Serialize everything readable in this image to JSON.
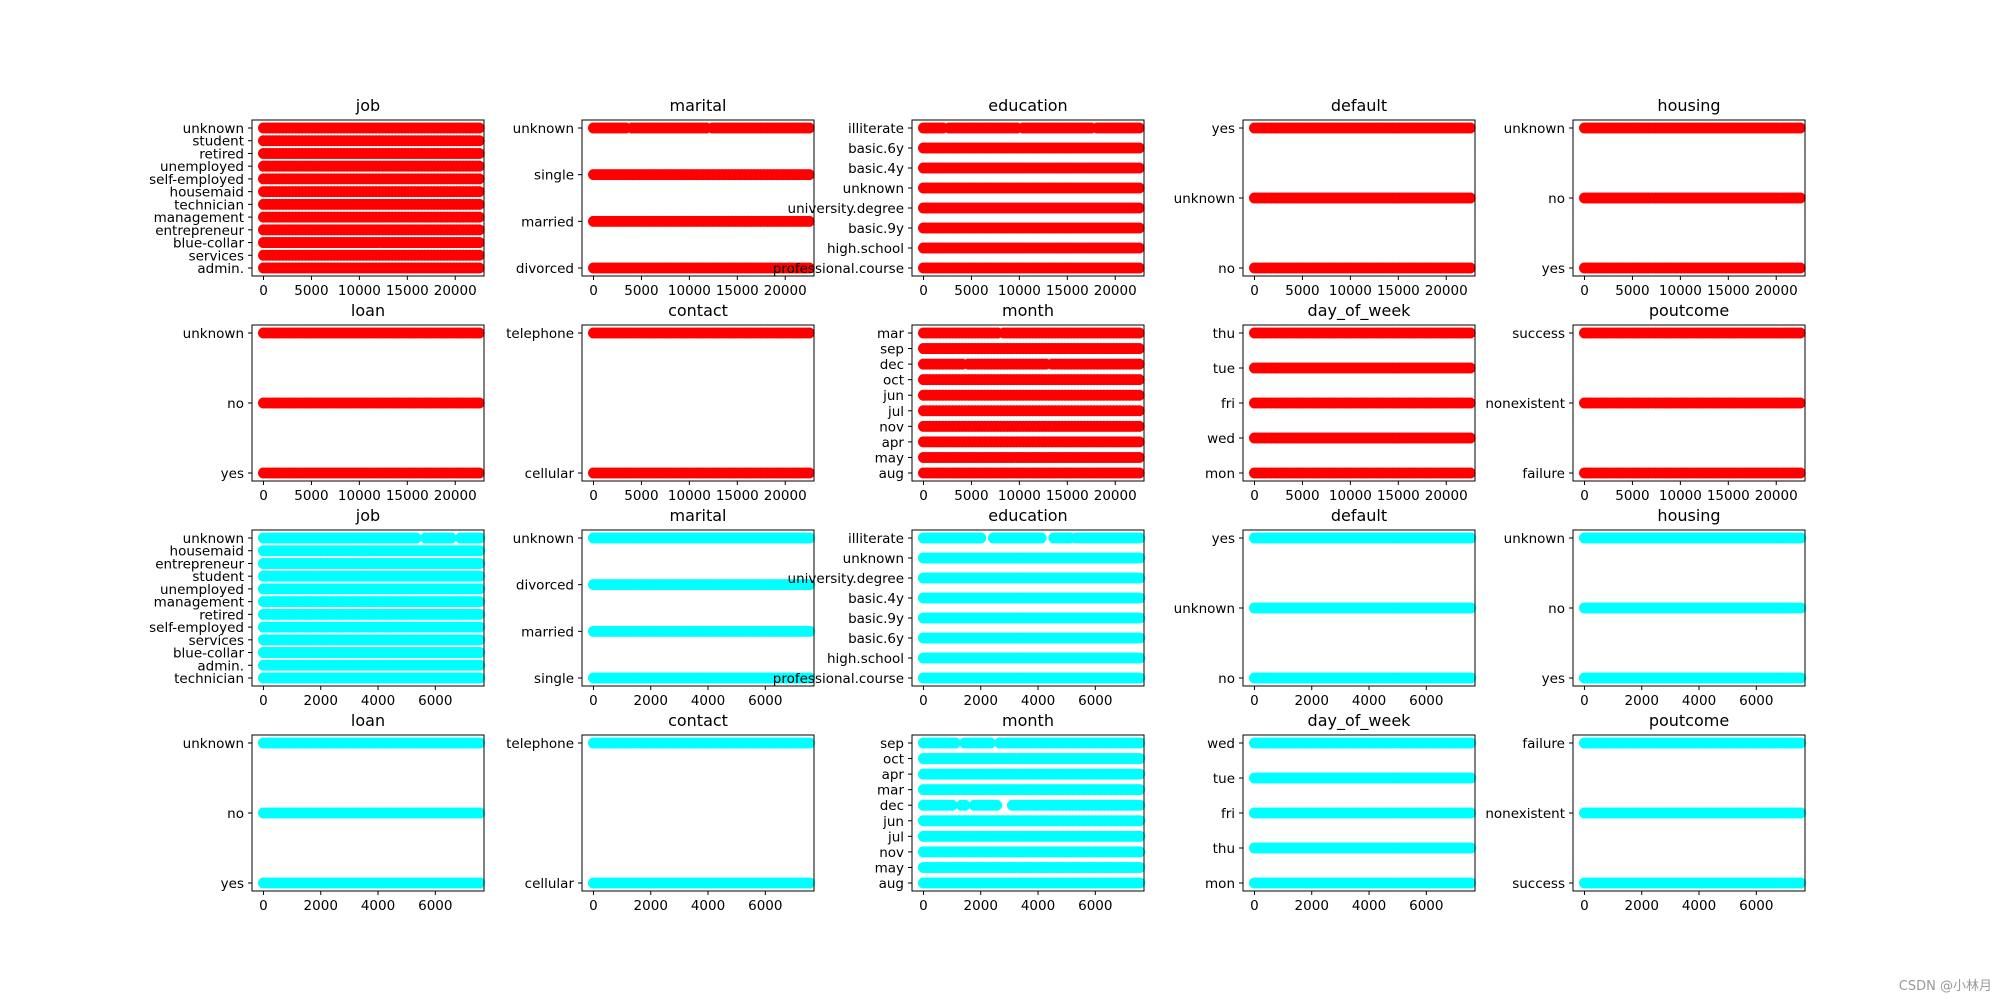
{
  "figure": {
    "watermark": "CSDN @小林月",
    "colors": {
      "group1": "#ff0000",
      "group2": "#00ffff",
      "axis": "#000000"
    }
  },
  "chart_data": [
    {
      "type": "scatter",
      "title": "job",
      "group": 1,
      "categories": [
        "admin.",
        "services",
        "blue-collar",
        "entrepreneur",
        "management",
        "technician",
        "housemaid",
        "self-employed",
        "unemployed",
        "retired",
        "student",
        "unknown"
      ],
      "xlim": [
        -1200,
        23000
      ],
      "xticks": [
        0,
        5000,
        10000,
        15000,
        20000
      ],
      "xrange": [
        0,
        22500
      ],
      "gaps": {}
    },
    {
      "type": "scatter",
      "title": "marital",
      "group": 1,
      "categories": [
        "divorced",
        "married",
        "single",
        "unknown"
      ],
      "xlim": [
        -1200,
        23000
      ],
      "xticks": [
        0,
        5000,
        10000,
        15000,
        20000
      ],
      "xrange": [
        0,
        22500
      ],
      "gaps": {
        "3": [
          [
            3500,
            3900
          ],
          [
            12000,
            12300
          ]
        ]
      }
    },
    {
      "type": "scatter",
      "title": "education",
      "group": 1,
      "categories": [
        "professional.course",
        "high.school",
        "basic.9y",
        "university.degree",
        "unknown",
        "basic.4y",
        "basic.6y",
        "illiterate"
      ],
      "xlim": [
        -1200,
        23000
      ],
      "xticks": [
        0,
        5000,
        10000,
        15000,
        20000
      ],
      "xrange": [
        0,
        22500
      ],
      "gaps": {
        "7": [
          [
            2100,
            2400
          ],
          [
            9800,
            10100
          ],
          [
            17500,
            17800
          ]
        ]
      }
    },
    {
      "type": "scatter",
      "title": "default",
      "group": 1,
      "categories": [
        "no",
        "unknown",
        "yes"
      ],
      "xlim": [
        -1200,
        23000
      ],
      "xticks": [
        0,
        5000,
        10000,
        15000,
        20000
      ],
      "xrange": [
        0,
        22500
      ],
      "gaps": {}
    },
    {
      "type": "scatter",
      "title": "housing",
      "group": 1,
      "categories": [
        "yes",
        "no",
        "unknown"
      ],
      "xlim": [
        -1200,
        23000
      ],
      "xticks": [
        0,
        5000,
        10000,
        15000,
        20000
      ],
      "xrange": [
        0,
        22500
      ],
      "gaps": {}
    },
    {
      "type": "scatter",
      "title": "loan",
      "group": 1,
      "categories": [
        "yes",
        "no",
        "unknown"
      ],
      "xlim": [
        -1200,
        23000
      ],
      "xticks": [
        0,
        5000,
        10000,
        15000,
        20000
      ],
      "xrange": [
        0,
        22500
      ],
      "gaps": {}
    },
    {
      "type": "scatter",
      "title": "contact",
      "group": 1,
      "categories": [
        "cellular",
        "telephone"
      ],
      "xlim": [
        -1200,
        23000
      ],
      "xticks": [
        0,
        5000,
        10000,
        15000,
        20000
      ],
      "xrange": [
        0,
        22500
      ],
      "gaps": {}
    },
    {
      "type": "scatter",
      "title": "month",
      "group": 1,
      "categories": [
        "aug",
        "may",
        "apr",
        "nov",
        "jul",
        "jun",
        "oct",
        "dec",
        "sep",
        "mar"
      ],
      "xlim": [
        -1200,
        23000
      ],
      "xticks": [
        0,
        5000,
        10000,
        15000,
        20000
      ],
      "xrange": [
        0,
        22500
      ],
      "gaps": {
        "7": [
          [
            4200,
            4500
          ],
          [
            13000,
            13300
          ]
        ],
        "9": [
          [
            8000,
            8300
          ]
        ]
      }
    },
    {
      "type": "scatter",
      "title": "day_of_week",
      "group": 1,
      "categories": [
        "mon",
        "wed",
        "fri",
        "tue",
        "thu"
      ],
      "xlim": [
        -1200,
        23000
      ],
      "xticks": [
        0,
        5000,
        10000,
        15000,
        20000
      ],
      "xrange": [
        0,
        22500
      ],
      "gaps": {}
    },
    {
      "type": "scatter",
      "title": "poutcome",
      "group": 1,
      "categories": [
        "failure",
        "nonexistent",
        "success"
      ],
      "xlim": [
        -1200,
        23000
      ],
      "xticks": [
        0,
        5000,
        10000,
        15000,
        20000
      ],
      "xrange": [
        0,
        22500
      ],
      "gaps": {}
    },
    {
      "type": "scatter",
      "title": "job",
      "group": 2,
      "categories": [
        "technician",
        "admin.",
        "blue-collar",
        "services",
        "self-employed",
        "retired",
        "management",
        "unemployed",
        "student",
        "entrepreneur",
        "housemaid",
        "unknown"
      ],
      "xlim": [
        -400,
        7700
      ],
      "xticks": [
        0,
        2000,
        4000,
        6000
      ],
      "xrange": [
        0,
        7550
      ],
      "gaps": {
        "11": [
          [
            5350,
            5600
          ],
          [
            6600,
            6800
          ]
        ]
      }
    },
    {
      "type": "scatter",
      "title": "marital",
      "group": 2,
      "categories": [
        "single",
        "married",
        "divorced",
        "unknown"
      ],
      "xlim": [
        -400,
        7700
      ],
      "xticks": [
        0,
        2000,
        4000,
        6000
      ],
      "xrange": [
        0,
        7550
      ],
      "gaps": {}
    },
    {
      "type": "scatter",
      "title": "education",
      "group": 2,
      "categories": [
        "professional.course",
        "high.school",
        "basic.6y",
        "basic.9y",
        "basic.4y",
        "university.degree",
        "unknown",
        "illiterate"
      ],
      "xlim": [
        -400,
        7700
      ],
      "xticks": [
        0,
        2000,
        4000,
        6000
      ],
      "xrange": [
        0,
        7550
      ],
      "gaps": {
        "7": [
          [
            2050,
            2400
          ],
          [
            4200,
            4450
          ],
          [
            5150,
            5300
          ]
        ]
      }
    },
    {
      "type": "scatter",
      "title": "default",
      "group": 2,
      "categories": [
        "no",
        "unknown",
        "yes"
      ],
      "xlim": [
        -400,
        7700
      ],
      "xticks": [
        0,
        2000,
        4000,
        6000
      ],
      "xrange": [
        0,
        7550
      ],
      "gaps": {}
    },
    {
      "type": "scatter",
      "title": "housing",
      "group": 2,
      "categories": [
        "yes",
        "no",
        "unknown"
      ],
      "xlim": [
        -400,
        7700
      ],
      "xticks": [
        0,
        2000,
        4000,
        6000
      ],
      "xrange": [
        0,
        7550
      ],
      "gaps": {}
    },
    {
      "type": "scatter",
      "title": "loan",
      "group": 2,
      "categories": [
        "yes",
        "no",
        "unknown"
      ],
      "xlim": [
        -400,
        7700
      ],
      "xticks": [
        0,
        2000,
        4000,
        6000
      ],
      "xrange": [
        0,
        7550
      ],
      "gaps": {}
    },
    {
      "type": "scatter",
      "title": "contact",
      "group": 2,
      "categories": [
        "cellular",
        "telephone"
      ],
      "xlim": [
        -400,
        7700
      ],
      "xticks": [
        0,
        2000,
        4000,
        6000
      ],
      "xrange": [
        0,
        7550
      ],
      "gaps": {}
    },
    {
      "type": "scatter",
      "title": "month",
      "group": 2,
      "categories": [
        "aug",
        "may",
        "nov",
        "jul",
        "jun",
        "dec",
        "mar",
        "apr",
        "oct",
        "sep"
      ],
      "xlim": [
        -400,
        7700
      ],
      "xticks": [
        0,
        2000,
        4000,
        6000
      ],
      "xrange": [
        0,
        7550
      ],
      "gaps": {
        "5": [
          [
            1000,
            1250
          ],
          [
            1500,
            1750
          ],
          [
            2600,
            3100
          ]
        ],
        "9": [
          [
            1200,
            1400
          ],
          [
            2400,
            2600
          ]
        ]
      }
    },
    {
      "type": "scatter",
      "title": "day_of_week",
      "group": 2,
      "categories": [
        "mon",
        "thu",
        "fri",
        "tue",
        "wed"
      ],
      "xlim": [
        -400,
        7700
      ],
      "xticks": [
        0,
        2000,
        4000,
        6000
      ],
      "xrange": [
        0,
        7550
      ],
      "gaps": {}
    },
    {
      "type": "scatter",
      "title": "poutcome",
      "group": 2,
      "categories": [
        "success",
        "nonexistent",
        "failure"
      ],
      "xlim": [
        -400,
        7700
      ],
      "xticks": [
        0,
        2000,
        4000,
        6000
      ],
      "xrange": [
        0,
        7550
      ],
      "gaps": {}
    }
  ]
}
